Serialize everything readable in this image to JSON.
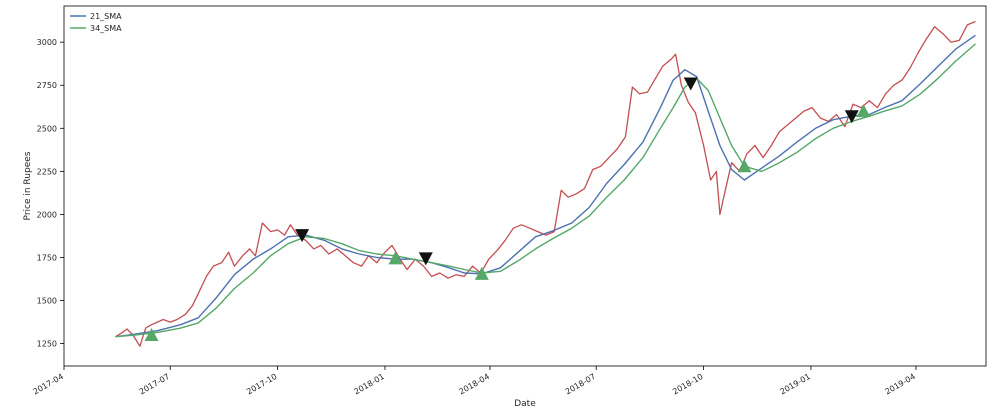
{
  "chart_data": {
    "type": "line",
    "xlabel": "Date",
    "ylabel": "Price in Rupees",
    "xlim": [
      "2017-04-01",
      "2019-05-31"
    ],
    "ylim": [
      1120,
      3210
    ],
    "grid": false,
    "legend_position": "top-left",
    "x_ticks": [
      {
        "date": "2017-04-01",
        "label": "2017-04"
      },
      {
        "date": "2017-07-01",
        "label": "2017-07"
      },
      {
        "date": "2017-10-01",
        "label": "2017-10"
      },
      {
        "date": "2018-01-01",
        "label": "2018-01"
      },
      {
        "date": "2018-04-01",
        "label": "2018-04"
      },
      {
        "date": "2018-07-01",
        "label": "2018-07"
      },
      {
        "date": "2018-10-01",
        "label": "2018-10"
      },
      {
        "date": "2019-01-01",
        "label": "2019-01"
      },
      {
        "date": "2019-04-01",
        "label": "2019-04"
      }
    ],
    "y_ticks": [
      1250,
      1500,
      1750,
      2000,
      2250,
      2500,
      2750,
      3000
    ],
    "series": [
      {
        "color": "#c44e52",
        "points": [
          [
            "2017-05-15",
            1290
          ],
          [
            "2017-05-20",
            1310
          ],
          [
            "2017-05-25",
            1335
          ],
          [
            "2017-05-30",
            1300
          ],
          [
            "2017-06-05",
            1235
          ],
          [
            "2017-06-10",
            1340
          ],
          [
            "2017-06-15",
            1360
          ],
          [
            "2017-06-20",
            1375
          ],
          [
            "2017-06-25",
            1390
          ],
          [
            "2017-07-01",
            1375
          ],
          [
            "2017-07-07",
            1390
          ],
          [
            "2017-07-14",
            1420
          ],
          [
            "2017-07-20",
            1470
          ],
          [
            "2017-07-25",
            1540
          ],
          [
            "2017-08-01",
            1640
          ],
          [
            "2017-08-07",
            1700
          ],
          [
            "2017-08-14",
            1720
          ],
          [
            "2017-08-20",
            1780
          ],
          [
            "2017-08-25",
            1700
          ],
          [
            "2017-09-01",
            1760
          ],
          [
            "2017-09-07",
            1800
          ],
          [
            "2017-09-12",
            1760
          ],
          [
            "2017-09-18",
            1950
          ],
          [
            "2017-09-25",
            1900
          ],
          [
            "2017-10-01",
            1910
          ],
          [
            "2017-10-07",
            1880
          ],
          [
            "2017-10-12",
            1940
          ],
          [
            "2017-10-18",
            1880
          ],
          [
            "2017-10-25",
            1850
          ],
          [
            "2017-11-01",
            1800
          ],
          [
            "2017-11-07",
            1820
          ],
          [
            "2017-11-14",
            1770
          ],
          [
            "2017-11-21",
            1800
          ],
          [
            "2017-11-28",
            1760
          ],
          [
            "2017-12-05",
            1720
          ],
          [
            "2017-12-12",
            1700
          ],
          [
            "2017-12-18",
            1760
          ],
          [
            "2017-12-25",
            1720
          ],
          [
            "2018-01-01",
            1780
          ],
          [
            "2018-01-07",
            1820
          ],
          [
            "2018-01-14",
            1740
          ],
          [
            "2018-01-20",
            1680
          ],
          [
            "2018-01-27",
            1740
          ],
          [
            "2018-02-03",
            1700
          ],
          [
            "2018-02-10",
            1640
          ],
          [
            "2018-02-17",
            1660
          ],
          [
            "2018-02-24",
            1630
          ],
          [
            "2018-03-03",
            1650
          ],
          [
            "2018-03-10",
            1640
          ],
          [
            "2018-03-17",
            1700
          ],
          [
            "2018-03-24",
            1660
          ],
          [
            "2018-03-31",
            1740
          ],
          [
            "2018-04-07",
            1790
          ],
          [
            "2018-04-14",
            1850
          ],
          [
            "2018-04-21",
            1920
          ],
          [
            "2018-04-28",
            1940
          ],
          [
            "2018-05-05",
            1920
          ],
          [
            "2018-05-12",
            1900
          ],
          [
            "2018-05-19",
            1880
          ],
          [
            "2018-05-26",
            1900
          ],
          [
            "2018-06-01",
            2140
          ],
          [
            "2018-06-07",
            2100
          ],
          [
            "2018-06-14",
            2120
          ],
          [
            "2018-06-21",
            2150
          ],
          [
            "2018-06-28",
            2260
          ],
          [
            "2018-07-05",
            2280
          ],
          [
            "2018-07-12",
            2330
          ],
          [
            "2018-07-19",
            2380
          ],
          [
            "2018-07-26",
            2450
          ],
          [
            "2018-08-01",
            2740
          ],
          [
            "2018-08-07",
            2700
          ],
          [
            "2018-08-14",
            2710
          ],
          [
            "2018-08-20",
            2780
          ],
          [
            "2018-08-27",
            2860
          ],
          [
            "2018-09-03",
            2900
          ],
          [
            "2018-09-07",
            2930
          ],
          [
            "2018-09-12",
            2750
          ],
          [
            "2018-09-18",
            2650
          ],
          [
            "2018-09-24",
            2590
          ],
          [
            "2018-10-01",
            2400
          ],
          [
            "2018-10-07",
            2200
          ],
          [
            "2018-10-12",
            2250
          ],
          [
            "2018-10-15",
            2000
          ],
          [
            "2018-10-20",
            2150
          ],
          [
            "2018-10-25",
            2300
          ],
          [
            "2018-11-01",
            2250
          ],
          [
            "2018-11-07",
            2350
          ],
          [
            "2018-11-14",
            2400
          ],
          [
            "2018-11-21",
            2330
          ],
          [
            "2018-11-28",
            2400
          ],
          [
            "2018-12-05",
            2480
          ],
          [
            "2018-12-12",
            2520
          ],
          [
            "2018-12-19",
            2560
          ],
          [
            "2018-12-26",
            2600
          ],
          [
            "2019-01-02",
            2620
          ],
          [
            "2019-01-09",
            2560
          ],
          [
            "2019-01-16",
            2540
          ],
          [
            "2019-01-23",
            2580
          ],
          [
            "2019-01-30",
            2510
          ],
          [
            "2019-02-06",
            2640
          ],
          [
            "2019-02-13",
            2620
          ],
          [
            "2019-02-20",
            2660
          ],
          [
            "2019-02-27",
            2620
          ],
          [
            "2019-03-06",
            2700
          ],
          [
            "2019-03-13",
            2750
          ],
          [
            "2019-03-20",
            2780
          ],
          [
            "2019-03-27",
            2850
          ],
          [
            "2019-04-03",
            2940
          ],
          [
            "2019-04-10",
            3020
          ],
          [
            "2019-04-17",
            3090
          ],
          [
            "2019-04-24",
            3050
          ],
          [
            "2019-05-01",
            3000
          ],
          [
            "2019-05-08",
            3010
          ],
          [
            "2019-05-15",
            3100
          ],
          [
            "2019-05-22",
            3120
          ]
        ]
      },
      {
        "name": "21_SMA",
        "color": "#4c72b0",
        "points": [
          [
            "2017-05-15",
            1290
          ],
          [
            "2017-06-01",
            1305
          ],
          [
            "2017-06-20",
            1325
          ],
          [
            "2017-07-10",
            1360
          ],
          [
            "2017-07-25",
            1400
          ],
          [
            "2017-08-10",
            1520
          ],
          [
            "2017-08-25",
            1650
          ],
          [
            "2017-09-10",
            1740
          ],
          [
            "2017-09-25",
            1800
          ],
          [
            "2017-10-10",
            1870
          ],
          [
            "2017-10-25",
            1880
          ],
          [
            "2017-11-10",
            1850
          ],
          [
            "2017-11-25",
            1800
          ],
          [
            "2017-12-10",
            1770
          ],
          [
            "2017-12-25",
            1750
          ],
          [
            "2018-01-10",
            1740
          ],
          [
            "2018-01-25",
            1740
          ],
          [
            "2018-02-10",
            1720
          ],
          [
            "2018-02-25",
            1690
          ],
          [
            "2018-03-10",
            1660
          ],
          [
            "2018-03-25",
            1655
          ],
          [
            "2018-04-10",
            1690
          ],
          [
            "2018-04-25",
            1780
          ],
          [
            "2018-05-10",
            1870
          ],
          [
            "2018-05-25",
            1905
          ],
          [
            "2018-06-10",
            1950
          ],
          [
            "2018-06-25",
            2040
          ],
          [
            "2018-07-10",
            2180
          ],
          [
            "2018-07-25",
            2290
          ],
          [
            "2018-08-10",
            2420
          ],
          [
            "2018-08-25",
            2620
          ],
          [
            "2018-09-05",
            2780
          ],
          [
            "2018-09-15",
            2840
          ],
          [
            "2018-09-25",
            2800
          ],
          [
            "2018-10-05",
            2600
          ],
          [
            "2018-10-15",
            2400
          ],
          [
            "2018-10-25",
            2260
          ],
          [
            "2018-11-05",
            2200
          ],
          [
            "2018-11-20",
            2270
          ],
          [
            "2018-12-05",
            2340
          ],
          [
            "2018-12-20",
            2420
          ],
          [
            "2019-01-05",
            2500
          ],
          [
            "2019-01-20",
            2550
          ],
          [
            "2019-02-05",
            2570
          ],
          [
            "2019-02-20",
            2580
          ],
          [
            "2019-03-05",
            2620
          ],
          [
            "2019-03-20",
            2660
          ],
          [
            "2019-04-05",
            2760
          ],
          [
            "2019-04-20",
            2860
          ],
          [
            "2019-05-05",
            2960
          ],
          [
            "2019-05-22",
            3040
          ]
        ]
      },
      {
        "name": "34_SMA",
        "color": "#55a868",
        "points": [
          [
            "2017-05-15",
            1290
          ],
          [
            "2017-06-01",
            1300
          ],
          [
            "2017-06-20",
            1315
          ],
          [
            "2017-07-10",
            1340
          ],
          [
            "2017-07-25",
            1370
          ],
          [
            "2017-08-10",
            1460
          ],
          [
            "2017-08-25",
            1570
          ],
          [
            "2017-09-10",
            1660
          ],
          [
            "2017-09-25",
            1760
          ],
          [
            "2017-10-10",
            1830
          ],
          [
            "2017-10-25",
            1870
          ],
          [
            "2017-11-10",
            1860
          ],
          [
            "2017-11-25",
            1830
          ],
          [
            "2017-12-10",
            1790
          ],
          [
            "2017-12-25",
            1770
          ],
          [
            "2018-01-10",
            1760
          ],
          [
            "2018-01-25",
            1740
          ],
          [
            "2018-02-10",
            1720
          ],
          [
            "2018-02-25",
            1700
          ],
          [
            "2018-03-10",
            1680
          ],
          [
            "2018-03-25",
            1660
          ],
          [
            "2018-04-10",
            1670
          ],
          [
            "2018-04-25",
            1730
          ],
          [
            "2018-05-10",
            1800
          ],
          [
            "2018-05-25",
            1860
          ],
          [
            "2018-06-10",
            1920
          ],
          [
            "2018-06-25",
            1990
          ],
          [
            "2018-07-10",
            2100
          ],
          [
            "2018-07-25",
            2200
          ],
          [
            "2018-08-10",
            2330
          ],
          [
            "2018-08-25",
            2500
          ],
          [
            "2018-09-05",
            2620
          ],
          [
            "2018-09-15",
            2740
          ],
          [
            "2018-09-25",
            2790
          ],
          [
            "2018-10-05",
            2720
          ],
          [
            "2018-10-15",
            2560
          ],
          [
            "2018-10-25",
            2400
          ],
          [
            "2018-11-05",
            2280
          ],
          [
            "2018-11-20",
            2250
          ],
          [
            "2018-12-05",
            2300
          ],
          [
            "2018-12-20",
            2360
          ],
          [
            "2019-01-05",
            2440
          ],
          [
            "2019-01-20",
            2500
          ],
          [
            "2019-02-05",
            2540
          ],
          [
            "2019-02-20",
            2570
          ],
          [
            "2019-03-05",
            2600
          ],
          [
            "2019-03-20",
            2630
          ],
          [
            "2019-04-05",
            2700
          ],
          [
            "2019-04-20",
            2790
          ],
          [
            "2019-05-05",
            2890
          ],
          [
            "2019-05-22",
            2990
          ]
        ]
      }
    ],
    "buy_signals": {
      "marker": "triangle-up",
      "color": "#55a868",
      "points": [
        [
          "2017-06-15",
          1300
        ],
        [
          "2018-01-10",
          1745
        ],
        [
          "2018-03-25",
          1655
        ],
        [
          "2018-11-05",
          2280
        ],
        [
          "2019-02-15",
          2600
        ]
      ]
    },
    "sell_signals": {
      "marker": "triangle-down",
      "color": "#111111",
      "points": [
        [
          "2017-10-22",
          1880
        ],
        [
          "2018-02-05",
          1745
        ],
        [
          "2018-09-20",
          2760
        ],
        [
          "2019-02-05",
          2570
        ]
      ]
    }
  }
}
